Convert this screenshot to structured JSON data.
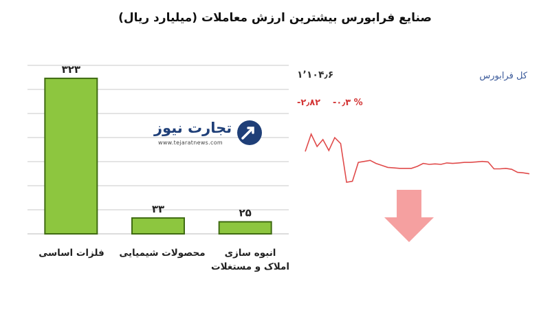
{
  "title": "صنایع فرابورس بیشترین ارزش معاملات  (میلیارد ریال)",
  "chart_data": [
    {
      "type": "bar",
      "categories": [
        "فلزات اساسی",
        "محصولات شیمیایی",
        "انبوه سازی املاک و مستغلات"
      ],
      "values": [
        323,
        33,
        25
      ],
      "data_labels": [
        "۳۲۳",
        "۳۳",
        "۲۵"
      ],
      "ylim": [
        0,
        350
      ],
      "grid": true,
      "colors": {
        "bar_fill": "#8dc63f",
        "bar_edge": "#3f6b12",
        "grid": "#c8c8c8"
      }
    },
    {
      "type": "line",
      "title": "کل فرابورس",
      "index_value": "۱٬۱۰۴٫۶",
      "change_percent": "-۰٫۳ %",
      "change_value": "-۲٫۸۲",
      "values": [
        1111.0,
        1114.5,
        1112.0,
        1113.4,
        1111.2,
        1113.8,
        1112.6,
        1104.8,
        1105.0,
        1108.8,
        1109.0,
        1109.2,
        1108.6,
        1108.2,
        1107.8,
        1107.7,
        1107.6,
        1107.6,
        1107.6,
        1108.0,
        1108.6,
        1108.4,
        1108.5,
        1108.4,
        1108.7,
        1108.6,
        1108.7,
        1108.8,
        1108.8,
        1108.9,
        1109.0,
        1108.9,
        1107.5,
        1107.5,
        1107.6,
        1107.4,
        1106.8,
        1106.7,
        1106.5
      ],
      "colors": {
        "line": "#e04a4a",
        "arrow": "#f5a0a0"
      }
    }
  ],
  "logo": {
    "text": "تجارت نیوز",
    "url": "www.tejaratnews.com"
  }
}
